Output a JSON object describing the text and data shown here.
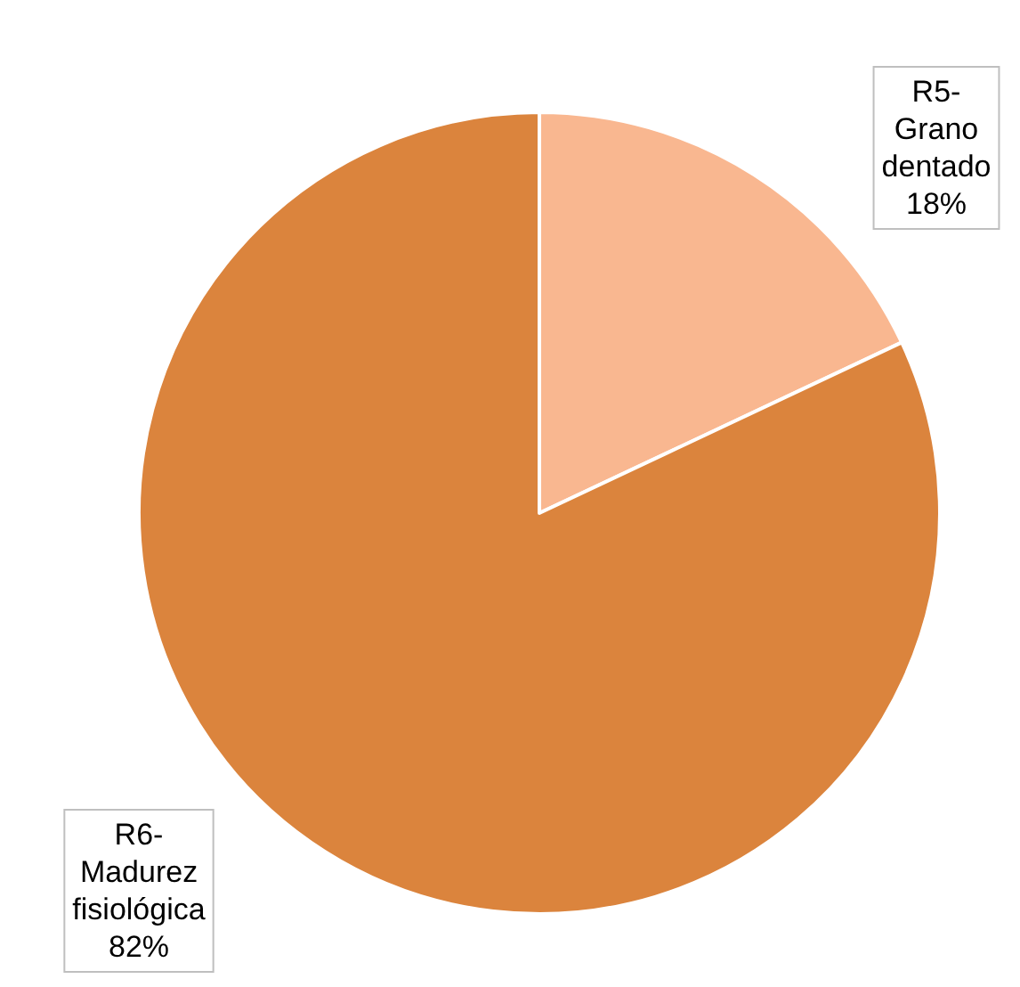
{
  "chart_data": {
    "type": "pie",
    "categories": [
      "R5-\nGrano\ndentado",
      "R6-\nMadurez\nfisiológica"
    ],
    "values": [
      18,
      82
    ],
    "colors": [
      "#f9b790",
      "#db843d"
    ],
    "value_labels": [
      "18%",
      "82%"
    ],
    "legend": false
  }
}
